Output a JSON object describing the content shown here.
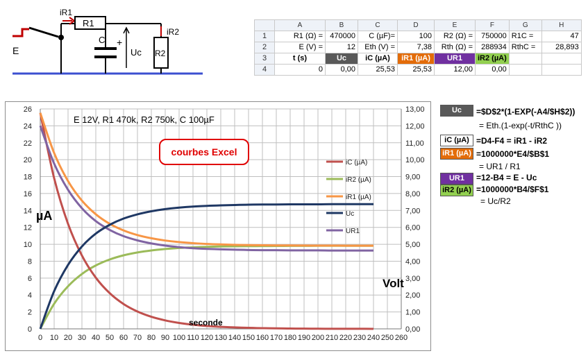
{
  "circuit": {
    "labels": {
      "ir1": "iR1",
      "r1": "R1",
      "ir2": "iR2",
      "c": "C",
      "plus": "+",
      "uc": "Uc",
      "r2": "R2",
      "e": "E"
    }
  },
  "sheet": {
    "col_headers": [
      "A",
      "B",
      "C",
      "D",
      "E",
      "F",
      "G",
      "H"
    ],
    "rows": [
      {
        "num": "1",
        "cells": [
          "R1 (Ω) =",
          "470000",
          "C (µF)=",
          "100",
          "R2 (Ω) =",
          "750000",
          "R1C =",
          "47"
        ]
      },
      {
        "num": "2",
        "cells": [
          "E (V) =",
          "12",
          "Eth (V) =",
          "7,38",
          "Rth (Ω) =",
          "288934",
          "RthC =",
          "28,893"
        ]
      },
      {
        "num": "3",
        "cells": [
          "t (s)",
          "Uc",
          "iC (µA)",
          "iR1 (µA)",
          "UR1",
          "iR2 (µA)",
          "",
          ""
        ]
      },
      {
        "num": "4",
        "cells": [
          "0",
          "0,00",
          "25,53",
          "25,53",
          "12,00",
          "0,00",
          "",
          ""
        ]
      }
    ],
    "header_colors": {
      "Uc": "#595959",
      "iR1": "#e36c09",
      "UR1": "#7030a0",
      "iR2": "#92d050"
    }
  },
  "chart_data": {
    "type": "line",
    "x": [
      0,
      10,
      20,
      30,
      40,
      50,
      60,
      70,
      80,
      90,
      100,
      110,
      120,
      130,
      140,
      150,
      160,
      170,
      180,
      190,
      200,
      210,
      220,
      230,
      240
    ],
    "series": [
      {
        "name": "iC (µA)",
        "axis": "left",
        "color": "#c0504d",
        "values": [
          25.53,
          17.81,
          12.42,
          8.67,
          6.05,
          4.22,
          2.94,
          2.05,
          1.43,
          1.0,
          0.7,
          0.49,
          0.34,
          0.24,
          0.17,
          0.12,
          0.08,
          0.06,
          0.04,
          0.03,
          0.02,
          0.01,
          0.01,
          0.01,
          0.0
        ]
      },
      {
        "name": "iR2 (µA)",
        "axis": "left",
        "color": "#9bbb59",
        "values": [
          0.0,
          2.97,
          5.04,
          6.49,
          7.5,
          8.2,
          8.69,
          9.03,
          9.27,
          9.44,
          9.56,
          9.64,
          9.7,
          9.74,
          9.76,
          9.78,
          9.79,
          9.8,
          9.81,
          9.81,
          9.82,
          9.82,
          9.82,
          9.82,
          9.83
        ]
      },
      {
        "name": "iR1 (µA)",
        "axis": "left",
        "color": "#f79646",
        "values": [
          25.53,
          20.78,
          17.47,
          15.16,
          13.55,
          12.42,
          11.64,
          11.09,
          10.71,
          10.44,
          10.26,
          10.13,
          10.04,
          9.98,
          9.93,
          9.9,
          9.88,
          9.87,
          9.86,
          9.85,
          9.84,
          9.84,
          9.83,
          9.83,
          9.83
        ]
      },
      {
        "name": "Uc",
        "axis": "right",
        "color": "#1f3864",
        "values": [
          0.0,
          2.23,
          3.78,
          4.87,
          5.63,
          6.15,
          6.52,
          6.77,
          6.95,
          7.08,
          7.17,
          7.23,
          7.27,
          7.3,
          7.32,
          7.34,
          7.35,
          7.35,
          7.36,
          7.36,
          7.36,
          7.37,
          7.37,
          7.37,
          7.37
        ]
      },
      {
        "name": "UR1",
        "axis": "right",
        "color": "#8064a2",
        "values": [
          12.0,
          9.77,
          8.22,
          7.13,
          6.37,
          5.85,
          5.48,
          5.23,
          5.05,
          4.92,
          4.83,
          4.77,
          4.73,
          4.7,
          4.68,
          4.66,
          4.65,
          4.65,
          4.64,
          4.64,
          4.64,
          4.63,
          4.63,
          4.63,
          4.63
        ]
      }
    ],
    "xlim": [
      0,
      260
    ],
    "xticks": [
      "0",
      "10",
      "20",
      "30",
      "40",
      "50",
      "60",
      "70",
      "80",
      "90",
      "100",
      "110",
      "120",
      "130",
      "140",
      "150",
      "160",
      "170",
      "180",
      "190",
      "200",
      "210",
      "220",
      "230",
      "240",
      "250",
      "260"
    ],
    "ylim_left": [
      0,
      26
    ],
    "yticks_left": [
      "0",
      "2",
      "4",
      "6",
      "8",
      "10",
      "12",
      "14",
      "16",
      "18",
      "20",
      "22",
      "24",
      "26"
    ],
    "ylim_right": [
      0,
      13
    ],
    "yticks_right": [
      "0,00",
      "1,00",
      "2,00",
      "3,00",
      "4,00",
      "5,00",
      "6,00",
      "7,00",
      "8,00",
      "9,00",
      "10,00",
      "11,00",
      "12,00",
      "13,00"
    ],
    "ylabel_left": "µA",
    "ylabel_right": "Volt",
    "xlabel": "seconde",
    "annotation": "E 12V,  R1 470k, R2 750k, C  100µF",
    "stamp": "courbes Excel",
    "grid": true,
    "legend_placement": "center-right"
  },
  "formulas": [
    {
      "label": "Uc",
      "bg": "#595959",
      "fg": "#ffffff",
      "lines": [
        "=$D$2*(1-EXP(-A4/$H$2))",
        "= Eth.(1-exp(-t/RthC ))"
      ]
    },
    {
      "label": "iC (µA)",
      "bg": "#ffffff",
      "fg": "#000000",
      "lines": [
        "=D4-F4  = iR1 - iR2"
      ]
    },
    {
      "label": "iR1 (µA)",
      "bg": "#e36c09",
      "fg": "#ffffff",
      "lines": [
        "=1000000*E4/$B$1",
        "= UR1 / R1"
      ]
    },
    {
      "label": "UR1",
      "bg": "#7030a0",
      "fg": "#ffffff",
      "lines": [
        "=12-B4  = E - Uc"
      ]
    },
    {
      "label": "iR2 (µA)",
      "bg": "#92d050",
      "fg": "#000000",
      "lines": [
        "=1000000*B4/$F$1",
        "= Uc/R2"
      ]
    }
  ]
}
